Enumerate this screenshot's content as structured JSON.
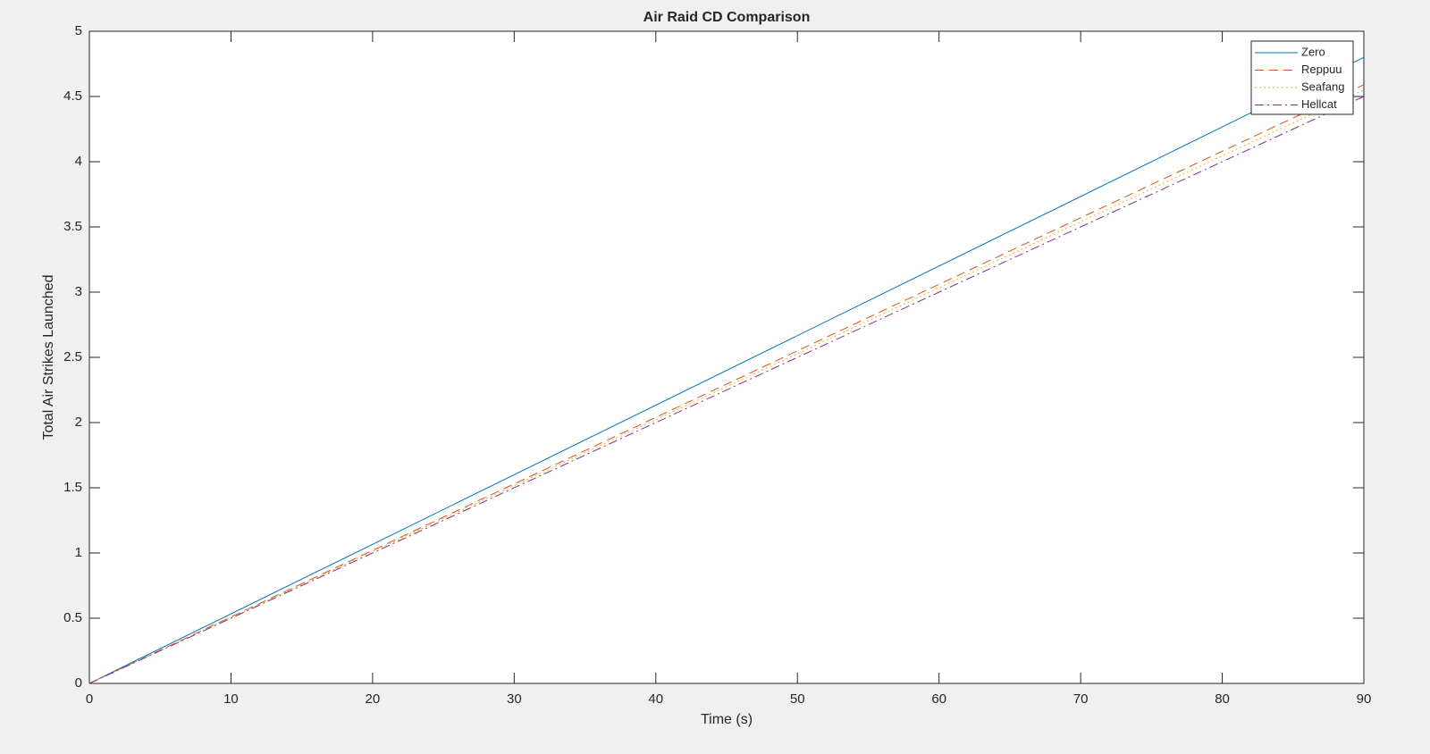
{
  "chart_data": {
    "type": "line",
    "title": "Air Raid CD Comparison",
    "xlabel": "Time (s)",
    "ylabel": "Total Air Strikes Launched",
    "x": [
      0,
      90
    ],
    "series": [
      {
        "name": "Zero",
        "color": "#0072bd",
        "style": "solid",
        "values": [
          0,
          4.8
        ]
      },
      {
        "name": "Reppuu",
        "color": "#d95319",
        "style": "dashed",
        "values": [
          0,
          4.59
        ]
      },
      {
        "name": "Seafang",
        "color": "#edb120",
        "style": "dotted",
        "values": [
          0,
          4.55
        ]
      },
      {
        "name": "Hellcat",
        "color": "#7e2f8e",
        "style": "dashdot",
        "values": [
          0,
          4.5
        ]
      }
    ],
    "xlim": [
      0,
      90
    ],
    "xticks": [
      0,
      10,
      20,
      30,
      40,
      50,
      60,
      70,
      80,
      90
    ],
    "ylim": [
      0,
      5
    ],
    "yticks": [
      0,
      0.5,
      1,
      1.5,
      2,
      2.5,
      3,
      3.5,
      4,
      4.5,
      5
    ],
    "grid": false,
    "legend": "northeast"
  }
}
